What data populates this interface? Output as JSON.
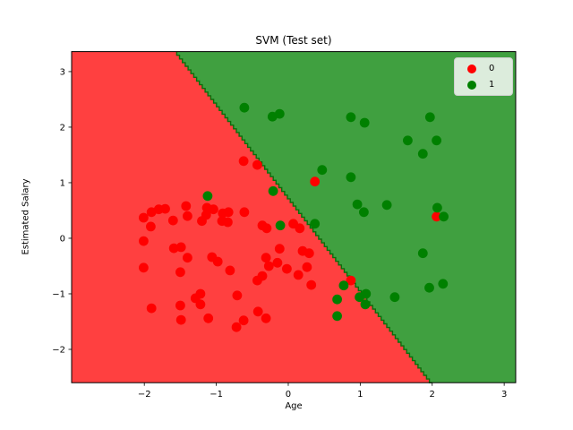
{
  "figure": {
    "background": "#ffffff"
  },
  "chart_data": {
    "type": "scatter",
    "title": "SVM (Test set)",
    "xlabel": "Age",
    "ylabel": "Estimated Salary",
    "xlim": [
      -3.01,
      3.16
    ],
    "ylim": [
      -2.6,
      3.36
    ],
    "grid": false,
    "legend_position": "upper right",
    "x_ticks": [
      {
        "value": -2,
        "label": "−2"
      },
      {
        "value": -1,
        "label": "−1"
      },
      {
        "value": 0,
        "label": "0"
      },
      {
        "value": 1,
        "label": "1"
      },
      {
        "value": 2,
        "label": "2"
      },
      {
        "value": 3,
        "label": "3"
      }
    ],
    "y_ticks": [
      {
        "value": -2,
        "label": "−2"
      },
      {
        "value": -1,
        "label": "−1"
      },
      {
        "value": 0,
        "label": "0"
      },
      {
        "value": 1,
        "label": "1"
      },
      {
        "value": 2,
        "label": "2"
      },
      {
        "value": 3,
        "label": "3"
      }
    ],
    "region_colors": {
      "class0": "#ff4040",
      "class1": "#40a040"
    },
    "boundary_color": "#0b6e0b",
    "decision_boundary": {
      "x_at_ytop": -1.55,
      "x_at_ybottom": 2.0
    },
    "series": [
      {
        "name": "0",
        "color": "#ff0000",
        "points": [
          [
            -2.01,
            0.37
          ],
          [
            -1.9,
            0.47
          ],
          [
            -1.8,
            0.52
          ],
          [
            -1.71,
            0.53
          ],
          [
            -1.91,
            0.21
          ],
          [
            -1.6,
            0.32
          ],
          [
            -1.42,
            0.58
          ],
          [
            -1.4,
            0.4
          ],
          [
            -1.2,
            0.31
          ],
          [
            -1.13,
            0.55
          ],
          [
            -1.04,
            0.52
          ],
          [
            -1.14,
            0.42
          ],
          [
            -0.91,
            0.45
          ],
          [
            -0.83,
            0.47
          ],
          [
            -0.92,
            0.31
          ],
          [
            -0.84,
            0.29
          ],
          [
            -0.61,
            0.47
          ],
          [
            -2.01,
            -0.05
          ],
          [
            -1.59,
            -0.18
          ],
          [
            -1.49,
            -0.16
          ],
          [
            -1.4,
            -0.35
          ],
          [
            -1.06,
            -0.34
          ],
          [
            -0.98,
            -0.42
          ],
          [
            -2.01,
            -0.53
          ],
          [
            -1.5,
            -0.61
          ],
          [
            -0.81,
            -0.58
          ],
          [
            -0.62,
            1.39
          ],
          [
            -0.43,
            1.32
          ],
          [
            0.37,
            1.02
          ],
          [
            -0.36,
            0.23
          ],
          [
            -0.3,
            0.18
          ],
          [
            0.07,
            0.26
          ],
          [
            0.16,
            0.18
          ],
          [
            -0.12,
            -0.19
          ],
          [
            -0.31,
            -0.35
          ],
          [
            -0.15,
            -0.44
          ],
          [
            -0.27,
            -0.5
          ],
          [
            0.2,
            -0.23
          ],
          [
            0.29,
            -0.27
          ],
          [
            -0.02,
            -0.55
          ],
          [
            -0.36,
            -0.68
          ],
          [
            0.14,
            -0.66
          ],
          [
            0.26,
            -0.52
          ],
          [
            0.32,
            -0.84
          ],
          [
            -1.9,
            -1.26
          ],
          [
            -1.5,
            -1.21
          ],
          [
            -1.49,
            -1.47
          ],
          [
            -1.29,
            -1.08
          ],
          [
            -1.22,
            -1.0
          ],
          [
            -1.22,
            -1.19
          ],
          [
            -1.11,
            -1.44
          ],
          [
            -0.71,
            -1.03
          ],
          [
            -0.43,
            -0.76
          ],
          [
            -0.42,
            -1.32
          ],
          [
            -0.31,
            -1.44
          ],
          [
            -0.62,
            -1.48
          ],
          [
            -0.72,
            -1.6
          ],
          [
            0.87,
            -0.76
          ],
          [
            2.06,
            0.39
          ]
        ]
      },
      {
        "name": "1",
        "color": "#008000",
        "points": [
          [
            -1.12,
            0.76
          ],
          [
            -0.61,
            2.35
          ],
          [
            -0.22,
            2.19
          ],
          [
            -0.12,
            2.24
          ],
          [
            0.87,
            2.18
          ],
          [
            1.06,
            2.08
          ],
          [
            0.47,
            1.23
          ],
          [
            0.87,
            1.1
          ],
          [
            0.96,
            0.61
          ],
          [
            1.05,
            0.47
          ],
          [
            -0.21,
            0.85
          ],
          [
            -0.11,
            0.23
          ],
          [
            0.37,
            0.26
          ],
          [
            1.37,
            0.6
          ],
          [
            1.97,
            2.18
          ],
          [
            1.66,
            1.76
          ],
          [
            2.06,
            1.76
          ],
          [
            1.87,
            1.52
          ],
          [
            2.07,
            0.55
          ],
          [
            2.16,
            0.39
          ],
          [
            1.87,
            -0.27
          ],
          [
            0.77,
            -0.85
          ],
          [
            0.68,
            -1.1
          ],
          [
            0.99,
            -1.06
          ],
          [
            1.08,
            -1.0
          ],
          [
            1.07,
            -1.19
          ],
          [
            0.68,
            -1.4
          ],
          [
            1.48,
            -1.06
          ],
          [
            2.15,
            -0.82
          ],
          [
            1.96,
            -0.89
          ]
        ]
      }
    ]
  }
}
